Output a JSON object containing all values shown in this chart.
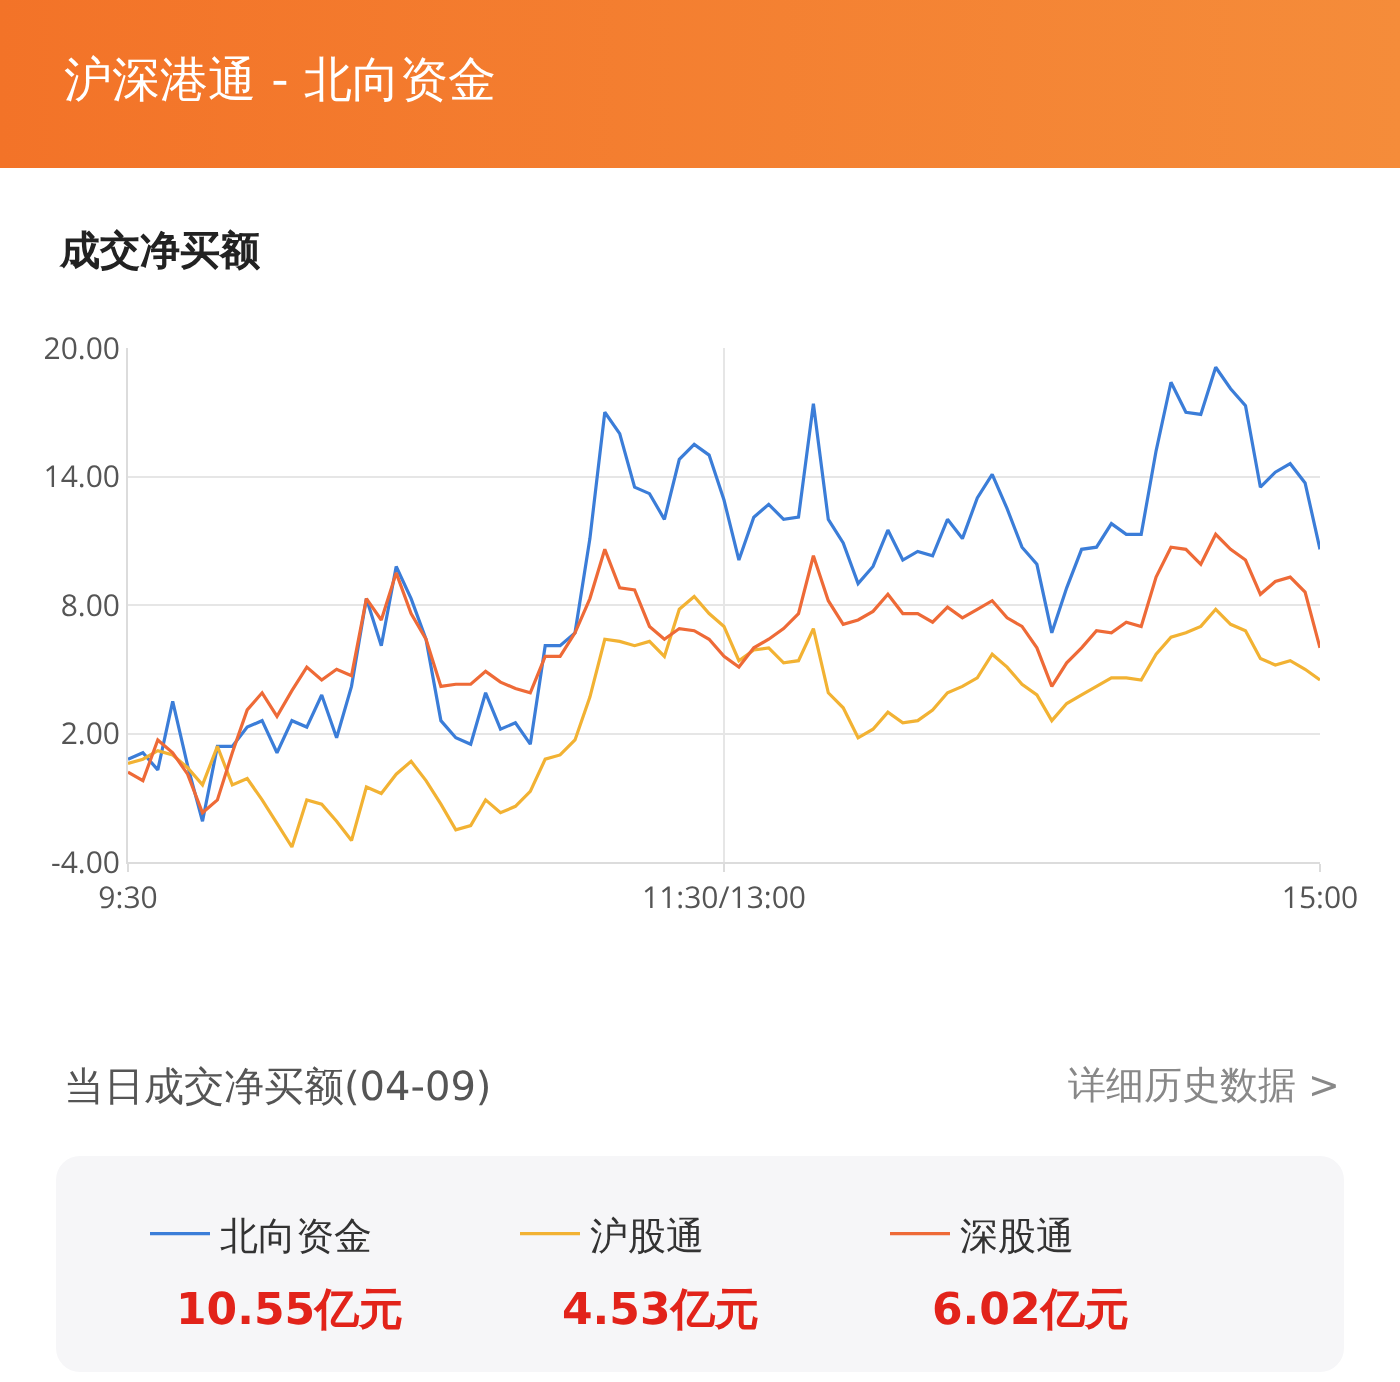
{
  "chart_data": {
    "type": "line",
    "title": "沪深港通 - 北向资金",
    "subtitle": "成交净买额",
    "categories": [
      "9:30",
      null,
      null,
      null,
      null,
      null,
      null,
      null,
      null,
      null,
      null,
      null,
      null,
      null,
      null,
      null,
      null,
      null,
      null,
      null,
      null,
      null,
      null,
      null,
      null,
      null,
      null,
      null,
      null,
      null,
      null,
      null,
      null,
      null,
      null,
      null,
      null,
      null,
      null,
      null,
      "11:30/13:00",
      null,
      null,
      null,
      null,
      null,
      null,
      null,
      null,
      null,
      null,
      null,
      null,
      null,
      null,
      null,
      null,
      null,
      null,
      null,
      null,
      null,
      null,
      null,
      null,
      null,
      null,
      null,
      null,
      null,
      null,
      null,
      null,
      null,
      null,
      null,
      null,
      null,
      null,
      null,
      "15:00"
    ],
    "ylim": [
      -4,
      20
    ],
    "yticks": [
      {
        "value": -4,
        "label": "-4.00"
      },
      {
        "value": 2,
        "label": "2.00"
      },
      {
        "value": 8,
        "label": "8.00"
      },
      {
        "value": 14,
        "label": "14.00"
      },
      {
        "value": 20,
        "label": "20.00"
      }
    ],
    "grid": true,
    "legend": "bottom",
    "line_style": "solid",
    "series": [
      {
        "name": "北向资金",
        "color": "#3b7dd8",
        "values": [
          0.8,
          1.1,
          0.3,
          3.5,
          0.5,
          -2.1,
          1.4,
          1.4,
          2.3,
          2.6,
          1.1,
          2.6,
          2.3,
          3.8,
          1.8,
          4.2,
          8.3,
          6.1,
          9.8,
          8.3,
          6.4,
          2.6,
          1.8,
          1.5,
          3.9,
          2.2,
          2.5,
          1.5,
          6.1,
          6.1,
          6.7,
          11.1,
          17.0,
          16.0,
          13.5,
          13.2,
          12.0,
          14.8,
          15.5,
          15.0,
          12.9,
          10.1,
          12.1,
          12.7,
          12.0,
          12.1,
          17.4,
          12.0,
          10.9,
          9.0,
          9.8,
          11.5,
          10.1,
          10.5,
          10.3,
          12.0,
          11.1,
          13.0,
          14.1,
          12.5,
          10.7,
          9.9,
          6.7,
          8.8,
          10.6,
          10.7,
          11.8,
          11.3,
          11.3,
          15.2,
          18.4,
          17.0,
          16.9,
          19.1,
          18.1,
          17.3,
          13.5,
          14.2,
          14.6,
          13.7,
          10.6
        ]
      },
      {
        "name": "沪股通",
        "color": "#f2b233",
        "values": [
          0.6,
          0.8,
          1.2,
          1.0,
          0.4,
          -0.4,
          1.4,
          -0.4,
          -0.1,
          -1.1,
          -2.2,
          -3.3,
          -1.1,
          -1.3,
          -2.1,
          -3.0,
          -0.5,
          -0.8,
          0.1,
          0.7,
          -0.2,
          -1.3,
          -2.5,
          -2.3,
          -1.1,
          -1.7,
          -1.4,
          -0.7,
          0.8,
          1.0,
          1.7,
          3.7,
          6.4,
          6.3,
          6.1,
          6.3,
          5.6,
          7.8,
          8.4,
          7.6,
          7.0,
          5.4,
          5.9,
          6.0,
          5.3,
          5.4,
          6.9,
          3.9,
          3.2,
          1.8,
          2.2,
          3.0,
          2.5,
          2.6,
          3.1,
          3.9,
          4.2,
          4.6,
          5.7,
          5.1,
          4.3,
          3.8,
          2.6,
          3.4,
          3.8,
          4.2,
          4.6,
          4.6,
          4.5,
          5.7,
          6.5,
          6.7,
          7.0,
          7.8,
          7.1,
          6.8,
          5.5,
          5.2,
          5.4,
          5.0,
          4.5
        ]
      },
      {
        "name": "深股通",
        "color": "#ee6a37",
        "values": [
          0.2,
          -0.2,
          1.7,
          1.1,
          0.1,
          -1.7,
          -1.1,
          1.1,
          3.1,
          3.9,
          2.8,
          4.0,
          5.1,
          4.5,
          5.0,
          4.7,
          8.3,
          7.3,
          9.5,
          7.6,
          6.4,
          4.2,
          4.3,
          4.3,
          4.9,
          4.4,
          4.1,
          3.9,
          5.6,
          5.6,
          6.7,
          8.3,
          10.6,
          8.8,
          8.7,
          7.0,
          6.4,
          6.9,
          6.8,
          6.4,
          5.6,
          5.1,
          6.0,
          6.4,
          6.9,
          7.6,
          10.3,
          8.2,
          7.1,
          7.3,
          7.7,
          8.5,
          7.6,
          7.6,
          7.2,
          7.9,
          7.4,
          7.8,
          8.2,
          7.4,
          7.0,
          6.0,
          4.2,
          5.3,
          6.0,
          6.8,
          6.7,
          7.2,
          7.0,
          9.3,
          10.7,
          10.6,
          9.9,
          11.3,
          10.6,
          10.1,
          8.5,
          9.1,
          9.3,
          8.6,
          6.0
        ]
      }
    ],
    "annotations": [
      "当日成交净买额(04-09)",
      "详细历史数据 >",
      "10.55亿元",
      "4.53亿元",
      "6.02亿元"
    ]
  }
}
